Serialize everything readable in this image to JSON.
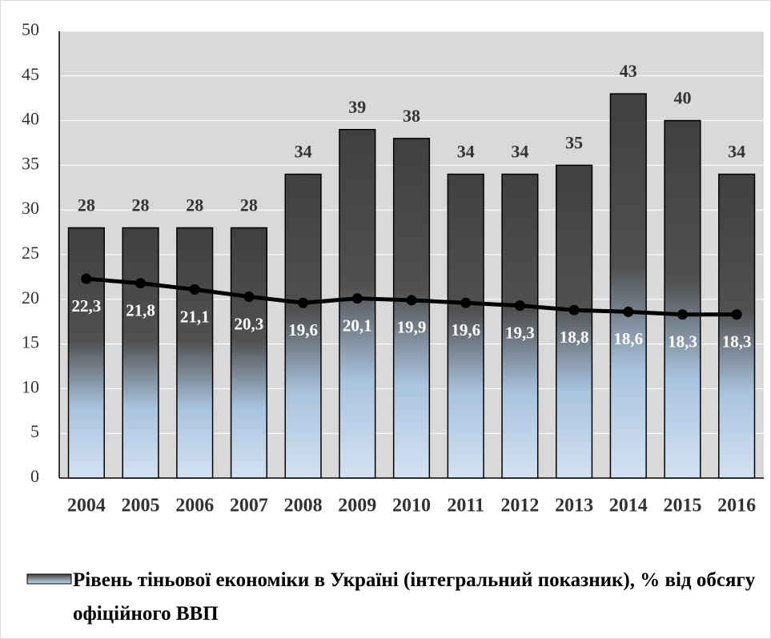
{
  "chart_data": {
    "type": "bar",
    "categories": [
      "2004",
      "2005",
      "2006",
      "2007",
      "2008",
      "2009",
      "2010",
      "2011",
      "2012",
      "2013",
      "2014",
      "2015",
      "2016"
    ],
    "series": [
      {
        "name": "Рівень тіньової економіки в Україні (інтегральний показник), % від обсягу офіційного ВВП",
        "type": "bar",
        "color": "#404040",
        "values": [
          28,
          28,
          28,
          28,
          34,
          39,
          38,
          34,
          34,
          35,
          43,
          40,
          34
        ]
      },
      {
        "type": "line",
        "color": "#000000",
        "values": [
          22.3,
          21.8,
          21.1,
          20.3,
          19.6,
          20.1,
          19.9,
          19.6,
          19.3,
          18.8,
          18.6,
          18.3,
          18.3
        ],
        "value_labels": [
          "22,3",
          "21,8",
          "21,1",
          "20,3",
          "19,6",
          "20,1",
          "19,9",
          "19,6",
          "19,3",
          "18,8",
          "18,6",
          "18,3",
          "18,3"
        ]
      }
    ],
    "ylim": [
      0,
      50
    ],
    "yticks": [
      0,
      5,
      10,
      15,
      20,
      25,
      30,
      35,
      40,
      45,
      50
    ],
    "grid": true,
    "legend": "bottom"
  }
}
